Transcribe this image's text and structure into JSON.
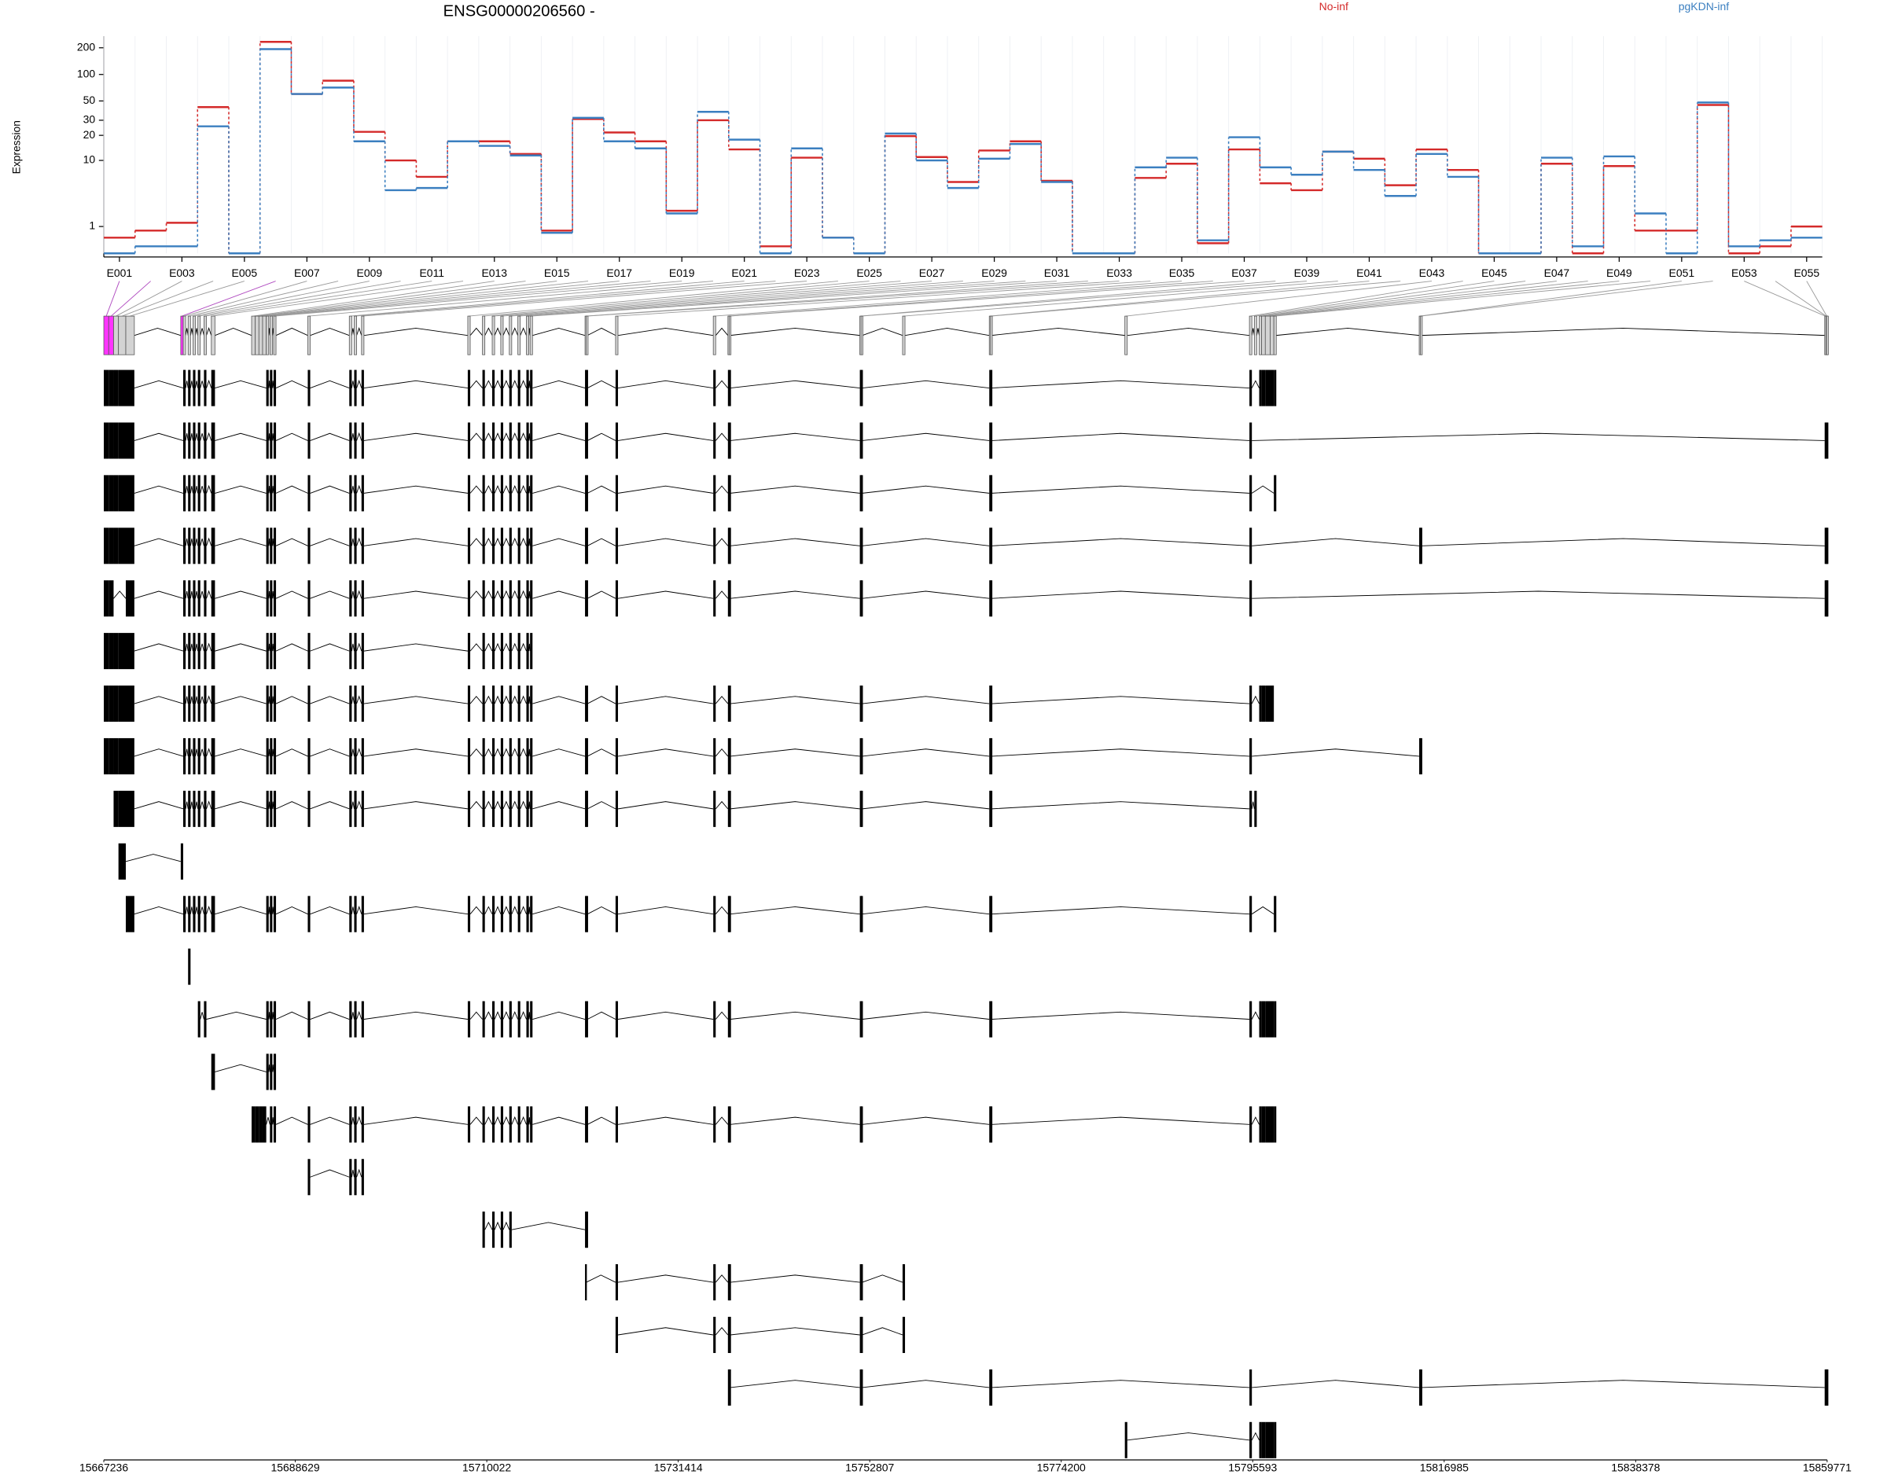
{
  "chart_data": {
    "type": "line",
    "title": "ENSG00000206560 -",
    "y_label": "Expression",
    "yscale": "log1p",
    "grid": true,
    "categories": [
      "E001",
      null,
      "E003",
      null,
      "E005",
      null,
      "E007",
      null,
      "E009",
      null,
      "E011",
      null,
      "E013",
      null,
      "E015",
      null,
      "E017",
      null,
      "E019",
      null,
      "E021",
      null,
      "E023",
      null,
      "E025",
      null,
      "E027",
      null,
      "E029",
      null,
      "E031",
      null,
      "E033",
      null,
      "E035",
      null,
      "E037",
      null,
      "E039",
      null,
      "E041",
      null,
      "E043",
      null,
      "E045",
      null,
      "E047",
      null,
      "E049",
      null,
      "E051",
      null,
      "E053",
      null,
      "E055"
    ],
    "series": [
      {
        "name": "No-inf",
        "color": "#d42a2a",
        "values": [
          0.5,
          0.8,
          1.2,
          42.5,
          0,
          233,
          60,
          85,
          22,
          10,
          6.2,
          17,
          17,
          12,
          0.8,
          31,
          21.6,
          17,
          2,
          30,
          13.6,
          0.2,
          10.8,
          0.5,
          0,
          19.6,
          11,
          5.3,
          13.2,
          17,
          5.5,
          0,
          0,
          6,
          9.1,
          0.3,
          13.6,
          5.1,
          4.1,
          12.8,
          10.5,
          4.8,
          13.6,
          7.6,
          0,
          0,
          9.1,
          0,
          8.5,
          0.8,
          0.8,
          45,
          0,
          0.2,
          1
        ]
      },
      {
        "name": "pgKDN-inf",
        "color": "#3b7fc0",
        "values": [
          0,
          0.2,
          0.2,
          25.5,
          0,
          193,
          60,
          71,
          17,
          4.1,
          4.4,
          17,
          15,
          11.5,
          0.7,
          32,
          17,
          14,
          1.8,
          37.5,
          17.8,
          0,
          14,
          0.5,
          0,
          21,
          10,
          4.4,
          10.5,
          15.8,
          5.3,
          0,
          0,
          8.2,
          10.8,
          0.4,
          19,
          8.2,
          6.6,
          12.8,
          7.6,
          3.4,
          12,
          6.2,
          0,
          0,
          10.8,
          0.2,
          11.2,
          1.8,
          0,
          48,
          0.2,
          0.4,
          0.5
        ]
      }
    ],
    "ylim": [
      0,
      270
    ],
    "yticks": [
      1,
      10,
      20,
      30,
      50,
      100,
      200
    ],
    "genome_xlim": [
      15667236,
      15859771
    ],
    "genome_xticks": [
      15667236,
      15688629,
      15710022,
      15731414,
      15752807,
      15774200,
      15795593,
      15816985,
      15838378,
      15859771
    ],
    "highlight": [
      0,
      1,
      5
    ],
    "exon_bins": [
      [
        15667236,
        15667782
      ],
      [
        15667782,
        15668328
      ],
      [
        15668328,
        15668873
      ],
      [
        15668873,
        15669692
      ],
      [
        15669692,
        15670647
      ],
      [
        15675832,
        15676105
      ],
      [
        15676105,
        15676378
      ],
      [
        15676651,
        15676924
      ],
      [
        15677197,
        15677470
      ],
      [
        15677743,
        15678016
      ],
      [
        15678425,
        15678698
      ],
      [
        15679244,
        15679653
      ],
      [
        15683746,
        15684156
      ],
      [
        15684156,
        15684565
      ],
      [
        15684565,
        15684975
      ],
      [
        15684975,
        15685384
      ],
      [
        15685384,
        15685657
      ],
      [
        15685793,
        15686066
      ],
      [
        15686203,
        15686475
      ],
      [
        15690023,
        15690296
      ],
      [
        15694662,
        15694935
      ],
      [
        15695208,
        15695481
      ],
      [
        15696027,
        15696300
      ],
      [
        15707898,
        15708171
      ],
      [
        15709536,
        15709808
      ],
      [
        15710627,
        15710900
      ],
      [
        15711582,
        15711855
      ],
      [
        15712537,
        15712810
      ],
      [
        15713493,
        15713765
      ],
      [
        15714448,
        15714721
      ],
      [
        15714857,
        15715130
      ],
      [
        15720997,
        15721134
      ],
      [
        15721134,
        15721270
      ],
      [
        15724409,
        15724680
      ],
      [
        15735325,
        15735597
      ],
      [
        15736962,
        15737098
      ],
      [
        15737098,
        15737235
      ],
      [
        15751699,
        15751835
      ],
      [
        15751835,
        15751972
      ],
      [
        15756474,
        15756747
      ],
      [
        15766162,
        15766298
      ],
      [
        15766298,
        15766435
      ],
      [
        15781308,
        15781581
      ],
      [
        15795226,
        15795499
      ],
      [
        15795772,
        15796045
      ],
      [
        15796318,
        15796591
      ],
      [
        15796591,
        15797000
      ],
      [
        15797000,
        15797546
      ],
      [
        15797546,
        15797955
      ],
      [
        15797955,
        15798228
      ],
      [
        15814193,
        15814329
      ],
      [
        15814329,
        15814466
      ],
      [
        15859493,
        15859630
      ],
      [
        15859630,
        15859700
      ],
      [
        15859700,
        15859771
      ]
    ],
    "transcripts": [
      [
        0,
        1,
        2,
        3,
        4,
        6,
        7,
        8,
        9,
        10,
        11,
        16,
        17,
        18,
        19,
        20,
        21,
        22,
        23,
        24,
        25,
        26,
        27,
        28,
        29,
        30,
        31,
        32,
        33,
        34,
        35,
        36,
        37,
        38,
        40,
        41,
        43,
        45,
        46,
        47,
        48,
        49
      ],
      [
        0,
        1,
        2,
        3,
        4,
        6,
        7,
        8,
        9,
        10,
        11,
        16,
        17,
        18,
        19,
        20,
        21,
        22,
        23,
        24,
        25,
        26,
        27,
        28,
        29,
        30,
        31,
        32,
        33,
        34,
        35,
        36,
        37,
        38,
        40,
        41,
        43,
        52,
        53,
        54
      ],
      [
        0,
        1,
        2,
        3,
        4,
        6,
        7,
        8,
        9,
        10,
        11,
        16,
        17,
        18,
        19,
        20,
        21,
        22,
        23,
        24,
        25,
        26,
        27,
        28,
        29,
        30,
        31,
        32,
        33,
        34,
        35,
        36,
        37,
        38,
        40,
        41,
        43,
        49
      ],
      [
        0,
        1,
        2,
        3,
        4,
        6,
        7,
        8,
        9,
        10,
        11,
        16,
        17,
        18,
        19,
        20,
        21,
        22,
        23,
        24,
        25,
        26,
        27,
        28,
        29,
        30,
        31,
        32,
        33,
        34,
        35,
        36,
        37,
        38,
        40,
        41,
        43,
        50,
        51,
        52,
        53,
        54
      ],
      [
        0,
        1,
        4,
        6,
        7,
        8,
        9,
        10,
        11,
        16,
        17,
        18,
        19,
        20,
        21,
        22,
        23,
        24,
        25,
        26,
        27,
        28,
        29,
        30,
        31,
        32,
        33,
        34,
        35,
        36,
        37,
        38,
        40,
        41,
        43,
        52,
        53,
        54
      ],
      [
        0,
        1,
        2,
        3,
        4,
        6,
        7,
        8,
        9,
        10,
        11,
        16,
        17,
        18,
        19,
        20,
        21,
        22,
        23,
        24,
        25,
        26,
        27,
        28,
        29,
        30
      ],
      [
        0,
        1,
        2,
        3,
        4,
        6,
        7,
        8,
        9,
        10,
        11,
        16,
        17,
        18,
        19,
        20,
        21,
        22,
        23,
        24,
        25,
        26,
        27,
        28,
        29,
        30,
        31,
        32,
        33,
        34,
        35,
        36,
        37,
        38,
        40,
        41,
        43,
        45,
        46,
        47,
        48
      ],
      [
        0,
        1,
        2,
        3,
        4,
        6,
        7,
        8,
        9,
        10,
        11,
        16,
        17,
        18,
        19,
        20,
        21,
        22,
        23,
        24,
        25,
        26,
        27,
        28,
        29,
        30,
        31,
        32,
        33,
        34,
        35,
        36,
        37,
        38,
        40,
        41,
        43,
        50,
        51
      ],
      [
        2,
        3,
        4,
        6,
        7,
        8,
        9,
        10,
        11,
        16,
        17,
        18,
        19,
        20,
        21,
        22,
        23,
        24,
        25,
        26,
        27,
        28,
        29,
        30,
        31,
        32,
        33,
        34,
        35,
        36,
        37,
        38,
        40,
        41,
        43,
        44
      ],
      [
        3,
        5
      ],
      [
        4,
        6,
        7,
        8,
        9,
        10,
        11,
        16,
        17,
        18,
        19,
        20,
        21,
        22,
        23,
        24,
        25,
        26,
        27,
        28,
        29,
        30,
        31,
        32,
        33,
        34,
        35,
        36,
        37,
        38,
        40,
        41,
        43,
        49
      ],
      [
        7
      ],
      [
        9,
        10,
        16,
        17,
        18,
        19,
        20,
        21,
        22,
        23,
        24,
        25,
        26,
        27,
        28,
        29,
        30,
        31,
        32,
        33,
        34,
        35,
        36,
        37,
        38,
        40,
        41,
        43,
        45,
        46,
        47,
        48,
        49
      ],
      [
        11,
        16,
        17,
        18
      ],
      [
        12,
        13,
        14,
        15,
        17,
        18,
        19,
        20,
        21,
        22,
        23,
        24,
        25,
        26,
        27,
        28,
        29,
        30,
        31,
        32,
        33,
        34,
        35,
        36,
        37,
        38,
        40,
        41,
        43,
        45,
        46,
        47,
        48,
        49
      ],
      [
        19,
        20,
        21,
        22
      ],
      [
        24,
        25,
        26,
        27,
        31,
        32
      ],
      [
        31,
        33,
        34,
        35,
        36,
        37,
        38,
        39
      ],
      [
        33,
        34,
        35,
        36,
        37,
        38,
        39
      ],
      [
        35,
        36,
        37,
        38,
        40,
        41,
        43,
        50,
        51,
        52,
        53,
        54
      ],
      [
        42,
        43,
        45,
        46,
        47,
        48,
        49
      ]
    ]
  }
}
